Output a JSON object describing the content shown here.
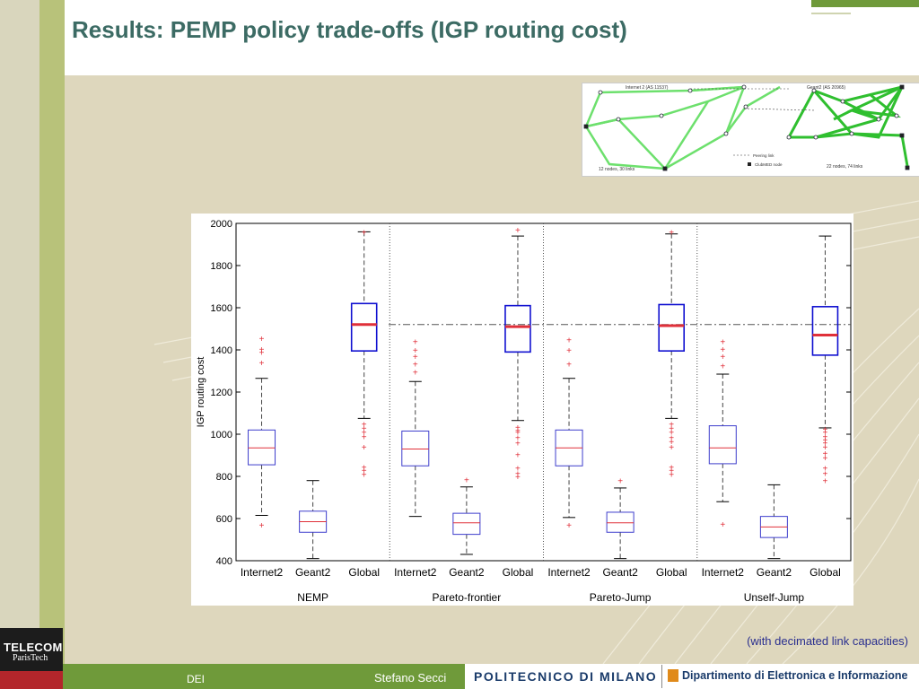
{
  "slide": {
    "title": "Results: PEMP policy trade-offs (IGP routing cost)",
    "note": "(with decimated link capacities)"
  },
  "footer": {
    "logo_top": "TELECOM",
    "logo_bottom": "ParisTech",
    "left_label": "DEI",
    "author": "Stefano Secci",
    "university": "POLITECNICO DI MILANO",
    "department": "Dipartimento di Elettronica e Informazione"
  },
  "network_image": {
    "left_label": "Internet 2 (AS 11537)",
    "right_label": "Geant2 (AS 20965)",
    "legend_peering": "Peering link",
    "legend_node": "ClubMED node",
    "left_count": "12 nodes, 30 links",
    "right_count": "22 nodes, 74 links"
  },
  "chart_data": {
    "type": "box",
    "ylabel": "IGP routing cost",
    "ylim": [
      400,
      2000
    ],
    "yticks": [
      400,
      600,
      800,
      1000,
      1200,
      1400,
      1600,
      1800,
      2000
    ],
    "reference_line": 1520,
    "groups": [
      {
        "name": "NEMP",
        "boxes": [
          {
            "category": "Internet2",
            "q1": 855,
            "median": 935,
            "q3": 1020,
            "whisker_low": 615,
            "whisker_high": 1265,
            "outliers": [
              1455,
              1405,
              1390,
              1340,
              570
            ]
          },
          {
            "category": "Geant2",
            "q1": 535,
            "median": 585,
            "q3": 635,
            "whisker_low": 410,
            "whisker_high": 780,
            "outliers": []
          },
          {
            "category": "Global",
            "q1": 1395,
            "median": 1520,
            "q3": 1620,
            "whisker_low": 1075,
            "whisker_high": 1960,
            "outliers": [
              1960,
              1050,
              1030,
              1010,
              990,
              940,
              845,
              830,
              810
            ]
          }
        ]
      },
      {
        "name": "Pareto-frontier",
        "boxes": [
          {
            "category": "Internet2",
            "q1": 850,
            "median": 930,
            "q3": 1015,
            "whisker_low": 610,
            "whisker_high": 1250,
            "outliers": [
              1440,
              1400,
              1370,
              1335,
              1295
            ]
          },
          {
            "category": "Geant2",
            "q1": 525,
            "median": 580,
            "q3": 625,
            "whisker_low": 430,
            "whisker_high": 750,
            "outliers": [
              785
            ]
          },
          {
            "category": "Global",
            "q1": 1390,
            "median": 1510,
            "q3": 1610,
            "whisker_low": 1065,
            "whisker_high": 1940,
            "outliers": [
              1970,
              1035,
              1020,
              1010,
              985,
              960,
              905,
              840,
              815,
              800
            ]
          }
        ]
      },
      {
        "name": "Pareto-Jump",
        "boxes": [
          {
            "category": "Internet2",
            "q1": 850,
            "median": 935,
            "q3": 1020,
            "whisker_low": 605,
            "whisker_high": 1265,
            "outliers": [
              1450,
              1400,
              1335,
              570
            ]
          },
          {
            "category": "Geant2",
            "q1": 535,
            "median": 580,
            "q3": 630,
            "whisker_low": 410,
            "whisker_high": 745,
            "outliers": [
              780
            ]
          },
          {
            "category": "Global",
            "q1": 1395,
            "median": 1515,
            "q3": 1615,
            "whisker_low": 1075,
            "whisker_high": 1950,
            "outliers": [
              1960,
              1050,
              1030,
              1010,
              985,
              965,
              940,
              845,
              830,
              810
            ]
          }
        ]
      },
      {
        "name": "Unself-Jump",
        "boxes": [
          {
            "category": "Internet2",
            "q1": 860,
            "median": 935,
            "q3": 1040,
            "whisker_low": 680,
            "whisker_high": 1285,
            "outliers": [
              1440,
              1405,
              1370,
              1325,
              575
            ]
          },
          {
            "category": "Geant2",
            "q1": 510,
            "median": 560,
            "q3": 610,
            "whisker_low": 410,
            "whisker_high": 760,
            "outliers": []
          },
          {
            "category": "Global",
            "q1": 1375,
            "median": 1470,
            "q3": 1605,
            "whisker_low": 1030,
            "whisker_high": 1940,
            "outliers": [
              1025,
              1010,
              990,
              975,
              960,
              940,
              910,
              890,
              840,
              815,
              780
            ]
          }
        ]
      }
    ],
    "colors": {
      "internet2_box": "#3d3dcc",
      "geant2_box": "#3d3dcc",
      "global_box": "#1010d0",
      "median": "#e0303a",
      "outlier": "#e0303a",
      "whisker": "#444444"
    }
  }
}
